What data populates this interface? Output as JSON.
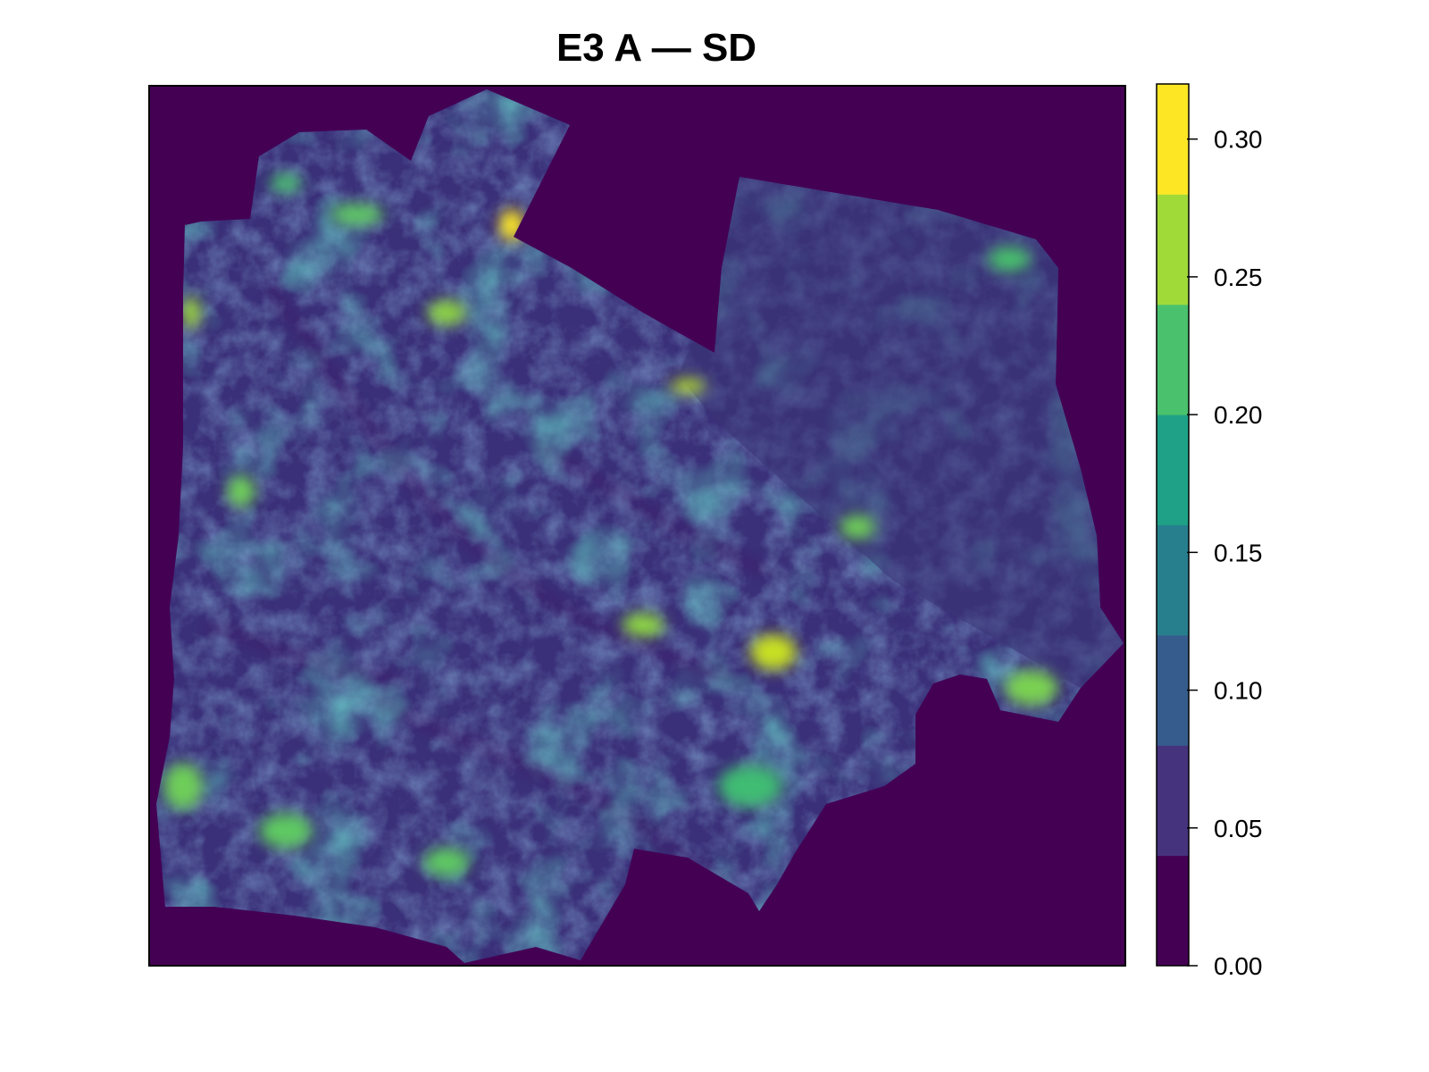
{
  "title": "E3 A — SD",
  "legend": {
    "palette": "viridis",
    "min": 0.0,
    "max": 0.32,
    "ticks": [
      {
        "value": 0.0,
        "label": "0.00"
      },
      {
        "value": 0.05,
        "label": "0.05"
      },
      {
        "value": 0.1,
        "label": "0.10"
      },
      {
        "value": 0.15,
        "label": "0.15"
      },
      {
        "value": 0.2,
        "label": "0.20"
      },
      {
        "value": 0.25,
        "label": "0.25"
      },
      {
        "value": 0.3,
        "label": "0.30"
      }
    ],
    "colors": [
      "#440154",
      "#46337e",
      "#365c8d",
      "#277f8e",
      "#1fa187",
      "#4ac16d",
      "#a0da39",
      "#fde725"
    ]
  },
  "map": {
    "background_color": "#440154",
    "background_value": 0.0
  }
}
